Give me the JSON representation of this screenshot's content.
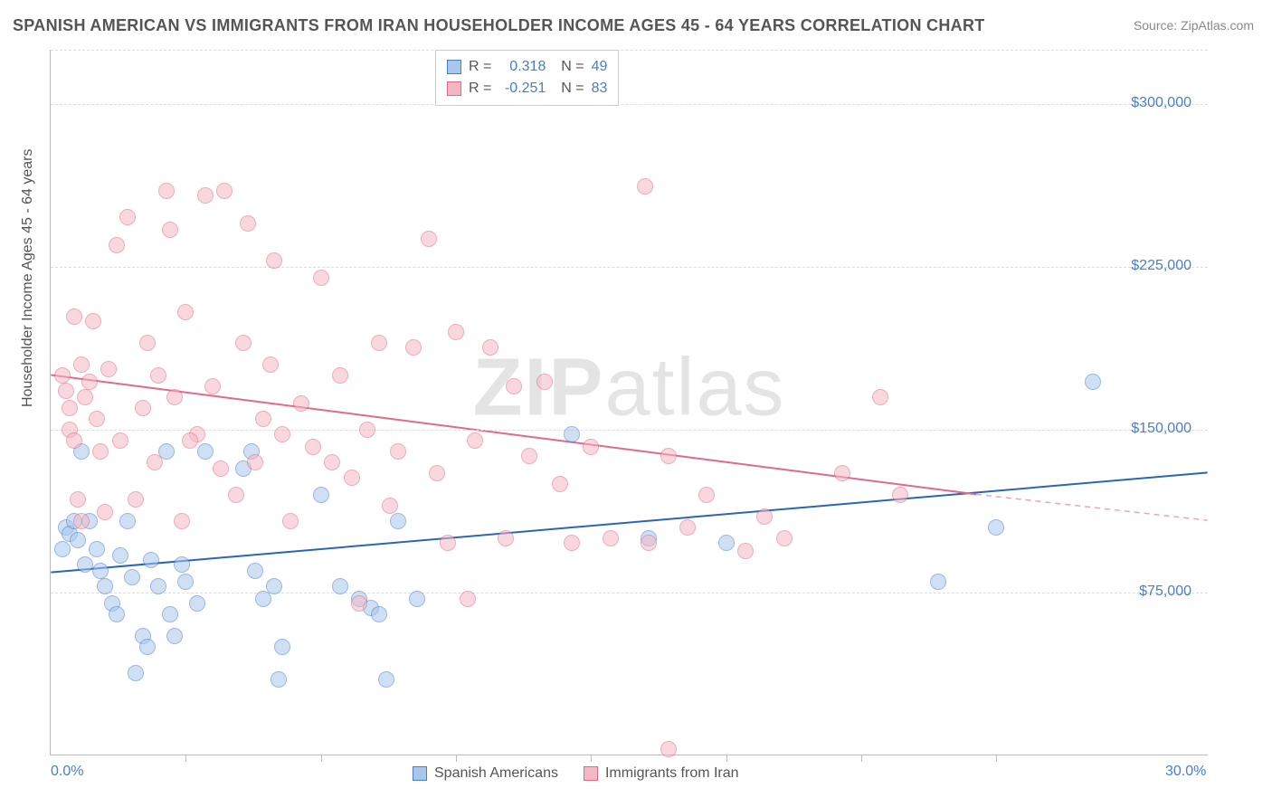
{
  "title": "SPANISH AMERICAN VS IMMIGRANTS FROM IRAN HOUSEHOLDER INCOME AGES 45 - 64 YEARS CORRELATION CHART",
  "source": "Source: ZipAtlas.com",
  "watermark_bold": "ZIP",
  "watermark_light": "atlas",
  "ylabel": "Householder Income Ages 45 - 64 years",
  "chart": {
    "type": "scatter",
    "background_color": "#ffffff",
    "grid_color": "#dddddd",
    "axis_color": "#bbbbbb",
    "xlim": [
      0,
      30
    ],
    "ylim": [
      0,
      325000
    ],
    "yticks": [
      {
        "v": 75000,
        "label": "$75,000"
      },
      {
        "v": 150000,
        "label": "$150,000"
      },
      {
        "v": 225000,
        "label": "$225,000"
      },
      {
        "v": 300000,
        "label": "$300,000"
      }
    ],
    "xticks": [
      {
        "v": 0,
        "label": "0.0%"
      },
      {
        "v": 30,
        "label": "30.0%"
      }
    ],
    "xtick_marks": [
      3.5,
      7,
      10.5,
      14,
      17.5,
      21,
      24.5
    ],
    "tick_label_color": "#4a7ec9",
    "tick_fontsize": 16,
    "title_fontsize": 18,
    "marker_radius": 9,
    "marker_opacity": 0.55,
    "series": [
      {
        "name": "Spanish Americans",
        "color_fill": "#a9c7ec",
        "color_stroke": "#4a7ec9",
        "R": "0.318",
        "N": "49",
        "trend": {
          "x1": 0,
          "y1": 84000,
          "x2": 30,
          "y2": 130000,
          "color": "#2b66b3",
          "width": 2
        },
        "points": [
          [
            0.4,
            105000
          ],
          [
            0.5,
            102000
          ],
          [
            0.6,
            108000
          ],
          [
            0.7,
            99000
          ],
          [
            0.3,
            95000
          ],
          [
            0.8,
            140000
          ],
          [
            1.0,
            108000
          ],
          [
            1.2,
            95000
          ],
          [
            1.3,
            85000
          ],
          [
            1.4,
            78000
          ],
          [
            1.6,
            70000
          ],
          [
            1.7,
            65000
          ],
          [
            1.8,
            92000
          ],
          [
            2.0,
            108000
          ],
          [
            2.1,
            82000
          ],
          [
            2.2,
            38000
          ],
          [
            2.4,
            55000
          ],
          [
            2.5,
            50000
          ],
          [
            2.6,
            90000
          ],
          [
            2.8,
            78000
          ],
          [
            3.0,
            140000
          ],
          [
            3.1,
            65000
          ],
          [
            3.2,
            55000
          ],
          [
            3.4,
            88000
          ],
          [
            3.5,
            80000
          ],
          [
            3.8,
            70000
          ],
          [
            4.0,
            140000
          ],
          [
            5.0,
            132000
          ],
          [
            5.2,
            140000
          ],
          [
            5.3,
            85000
          ],
          [
            5.5,
            72000
          ],
          [
            5.8,
            78000
          ],
          [
            5.9,
            35000
          ],
          [
            6.0,
            50000
          ],
          [
            7.0,
            120000
          ],
          [
            7.5,
            78000
          ],
          [
            8.0,
            72000
          ],
          [
            8.3,
            68000
          ],
          [
            8.5,
            65000
          ],
          [
            8.7,
            35000
          ],
          [
            9.0,
            108000
          ],
          [
            9.5,
            72000
          ],
          [
            13.5,
            148000
          ],
          [
            15.5,
            100000
          ],
          [
            17.5,
            98000
          ],
          [
            23.0,
            80000
          ],
          [
            27.0,
            172000
          ],
          [
            24.5,
            105000
          ],
          [
            0.9,
            88000
          ]
        ]
      },
      {
        "name": "Immigrants from Iran",
        "color_fill": "#f4b8c4",
        "color_stroke": "#e06a87",
        "R": "-0.251",
        "N": "83",
        "trend": {
          "x1": 0,
          "y1": 175000,
          "x2": 24,
          "y2": 120000,
          "color": "#e06a87",
          "width": 2,
          "dash_ext": {
            "x1": 24,
            "y1": 120000,
            "x2": 30,
            "y2": 108000
          }
        },
        "points": [
          [
            0.3,
            175000
          ],
          [
            0.4,
            168000
          ],
          [
            0.5,
            160000
          ],
          [
            0.5,
            150000
          ],
          [
            0.6,
            145000
          ],
          [
            0.7,
            118000
          ],
          [
            0.8,
            108000
          ],
          [
            0.8,
            180000
          ],
          [
            0.9,
            165000
          ],
          [
            1.0,
            172000
          ],
          [
            1.1,
            200000
          ],
          [
            1.2,
            155000
          ],
          [
            1.3,
            140000
          ],
          [
            1.5,
            178000
          ],
          [
            1.7,
            235000
          ],
          [
            1.8,
            145000
          ],
          [
            2.0,
            248000
          ],
          [
            2.2,
            118000
          ],
          [
            2.4,
            160000
          ],
          [
            2.5,
            190000
          ],
          [
            2.7,
            135000
          ],
          [
            2.8,
            175000
          ],
          [
            3.0,
            260000
          ],
          [
            3.1,
            242000
          ],
          [
            3.2,
            165000
          ],
          [
            3.4,
            108000
          ],
          [
            3.5,
            204000
          ],
          [
            3.8,
            148000
          ],
          [
            4.0,
            258000
          ],
          [
            4.2,
            170000
          ],
          [
            4.4,
            132000
          ],
          [
            4.5,
            260000
          ],
          [
            4.8,
            120000
          ],
          [
            5.0,
            190000
          ],
          [
            5.1,
            245000
          ],
          [
            5.3,
            135000
          ],
          [
            5.5,
            155000
          ],
          [
            5.7,
            180000
          ],
          [
            5.8,
            228000
          ],
          [
            6.0,
            148000
          ],
          [
            6.2,
            108000
          ],
          [
            6.5,
            162000
          ],
          [
            6.8,
            142000
          ],
          [
            7.0,
            220000
          ],
          [
            7.3,
            135000
          ],
          [
            7.5,
            175000
          ],
          [
            7.8,
            128000
          ],
          [
            8.0,
            70000
          ],
          [
            8.2,
            150000
          ],
          [
            8.5,
            190000
          ],
          [
            8.8,
            115000
          ],
          [
            9.0,
            140000
          ],
          [
            9.4,
            188000
          ],
          [
            9.8,
            238000
          ],
          [
            10.0,
            130000
          ],
          [
            10.3,
            98000
          ],
          [
            10.5,
            195000
          ],
          [
            10.8,
            72000
          ],
          [
            11.0,
            145000
          ],
          [
            11.4,
            188000
          ],
          [
            11.8,
            100000
          ],
          [
            12.0,
            170000
          ],
          [
            12.4,
            138000
          ],
          [
            12.8,
            172000
          ],
          [
            13.2,
            125000
          ],
          [
            13.5,
            98000
          ],
          [
            14.0,
            142000
          ],
          [
            14.5,
            100000
          ],
          [
            15.4,
            262000
          ],
          [
            15.5,
            98000
          ],
          [
            16.0,
            138000
          ],
          [
            16.5,
            105000
          ],
          [
            17.0,
            120000
          ],
          [
            18.0,
            94000
          ],
          [
            18.5,
            110000
          ],
          [
            19.0,
            100000
          ],
          [
            20.5,
            130000
          ],
          [
            21.5,
            165000
          ],
          [
            22.0,
            120000
          ],
          [
            16.0,
            3000
          ],
          [
            0.6,
            202000
          ],
          [
            1.4,
            112000
          ],
          [
            3.6,
            145000
          ]
        ]
      }
    ]
  },
  "legend_bottom": [
    {
      "label": "Spanish Americans",
      "fill": "#a9c7ec",
      "stroke": "#4a7ec9"
    },
    {
      "label": "Immigrants from Iran",
      "fill": "#f4b8c4",
      "stroke": "#e06a87"
    }
  ]
}
